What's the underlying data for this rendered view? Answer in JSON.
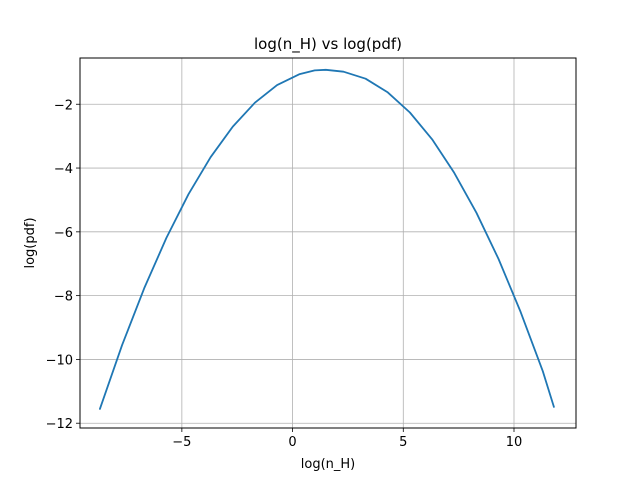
{
  "chart_data": {
    "type": "line",
    "title": "log(n_H) vs log(pdf)",
    "xlabel": "log(n_H)",
    "ylabel": "log(pdf)",
    "xlim": [
      -9.6,
      12.8
    ],
    "ylim": [
      -12.15,
      -0.55
    ],
    "xticks": [
      -5,
      0,
      5,
      10
    ],
    "yticks": [
      -12,
      -10,
      -8,
      -6,
      -4,
      -2
    ],
    "grid": true,
    "series": [
      {
        "color": "#1f77b4",
        "x": [
          -8.7,
          -7.7,
          -6.7,
          -5.7,
          -4.7,
          -3.7,
          -2.7,
          -1.7,
          -0.7,
          0.3,
          1.0,
          1.5,
          2.3,
          3.3,
          4.3,
          5.3,
          6.3,
          7.3,
          8.3,
          9.3,
          10.3,
          11.3,
          11.8
        ],
        "y": [
          -11.55,
          -9.55,
          -7.77,
          -6.19,
          -4.82,
          -3.66,
          -2.7,
          -1.95,
          -1.4,
          -1.06,
          -0.94,
          -0.92,
          -0.98,
          -1.2,
          -1.63,
          -2.26,
          -3.1,
          -4.15,
          -5.4,
          -6.85,
          -8.51,
          -10.37,
          -11.49
        ]
      }
    ]
  }
}
